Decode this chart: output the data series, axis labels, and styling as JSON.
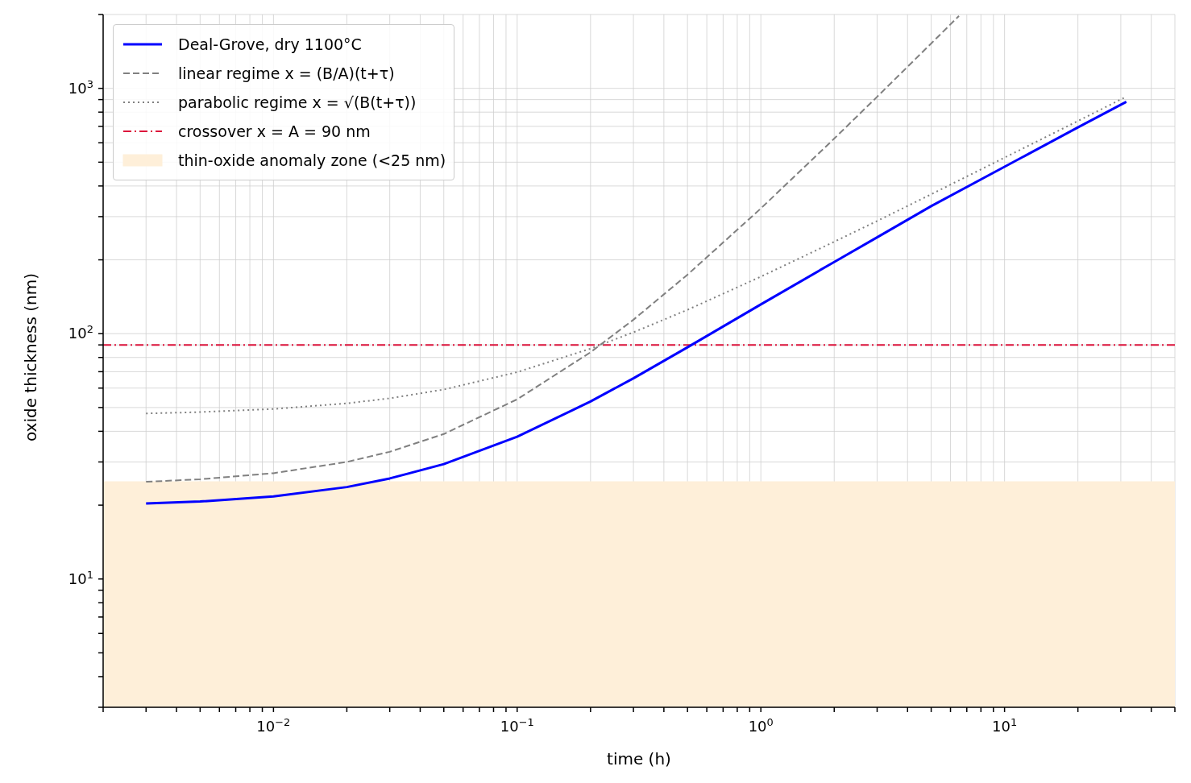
{
  "chart_data": {
    "type": "line",
    "xlabel": "time (h)",
    "ylabel": "oxide thickness (nm)",
    "log": "xy",
    "grid": true,
    "legend": "top left",
    "marker": "none",
    "xlim": [
      0.002,
      50
    ],
    "ylim": [
      3,
      2000
    ],
    "xticks": [
      {
        "value": 0.002,
        "label": null
      },
      {
        "value": 0.003,
        "label": null
      },
      {
        "value": 0.004,
        "label": null
      },
      {
        "value": 0.005,
        "label": null
      },
      {
        "value": 0.006,
        "label": null
      },
      {
        "value": 0.007,
        "label": null
      },
      {
        "value": 0.008,
        "label": null
      },
      {
        "value": 0.009,
        "label": null
      },
      {
        "value": 0.01,
        "label": "10$^{−2}$"
      },
      {
        "value": 0.02,
        "label": null
      },
      {
        "value": 0.03,
        "label": null
      },
      {
        "value": 0.04,
        "label": null
      },
      {
        "value": 0.05,
        "label": null
      },
      {
        "value": 0.06,
        "label": null
      },
      {
        "value": 0.07,
        "label": null
      },
      {
        "value": 0.08,
        "label": null
      },
      {
        "value": 0.09,
        "label": null
      },
      {
        "value": 0.1,
        "label": "10$^{−1}$"
      },
      {
        "value": 0.2,
        "label": null
      },
      {
        "value": 0.3,
        "label": null
      },
      {
        "value": 0.4,
        "label": null
      },
      {
        "value": 0.5,
        "label": null
      },
      {
        "value": 0.6,
        "label": null
      },
      {
        "value": 0.7,
        "label": null
      },
      {
        "value": 0.8,
        "label": null
      },
      {
        "value": 0.9,
        "label": null
      },
      {
        "value": 1,
        "label": "10$^{0}$"
      },
      {
        "value": 2,
        "label": null
      },
      {
        "value": 3,
        "label": null
      },
      {
        "value": 4,
        "label": null
      },
      {
        "value": 5,
        "label": null
      },
      {
        "value": 6,
        "label": null
      },
      {
        "value": 7,
        "label": null
      },
      {
        "value": 8,
        "label": null
      },
      {
        "value": 9,
        "label": null
      },
      {
        "value": 10,
        "label": "10$^{1}$"
      },
      {
        "value": 20,
        "label": null
      },
      {
        "value": 30,
        "label": null
      },
      {
        "value": 40,
        "label": null
      },
      {
        "value": 50,
        "label": null
      }
    ],
    "yticks": [
      {
        "value": 3,
        "label": null
      },
      {
        "value": 4,
        "label": null
      },
      {
        "value": 5,
        "label": null
      },
      {
        "value": 6,
        "label": null
      },
      {
        "value": 7,
        "label": null
      },
      {
        "value": 8,
        "label": null
      },
      {
        "value": 9,
        "label": null
      },
      {
        "value": 10,
        "label": "10$^{1}$"
      },
      {
        "value": 20,
        "label": null
      },
      {
        "value": 30,
        "label": null
      },
      {
        "value": 40,
        "label": null
      },
      {
        "value": 50,
        "label": null
      },
      {
        "value": 60,
        "label": null
      },
      {
        "value": 70,
        "label": null
      },
      {
        "value": 80,
        "label": null
      },
      {
        "value": 90,
        "label": null
      },
      {
        "value": 100,
        "label": "10$^{2}$"
      },
      {
        "value": 200,
        "label": null
      },
      {
        "value": 300,
        "label": null
      },
      {
        "value": 400,
        "label": null
      },
      {
        "value": 500,
        "label": null
      },
      {
        "value": 600,
        "label": null
      },
      {
        "value": 700,
        "label": null
      },
      {
        "value": 800,
        "label": null
      },
      {
        "value": 900,
        "label": null
      },
      {
        "value": 1000,
        "label": "10$^{3}$"
      },
      {
        "value": 2000,
        "label": null
      }
    ],
    "series": [
      {
        "name": "Deal-Grove, dry 1100°C",
        "color": "#0000ff",
        "line_style": "solid",
        "x": [
          0.003,
          0.005,
          0.01,
          0.02,
          0.03,
          0.05,
          0.1,
          0.2,
          0.3,
          0.5,
          1,
          2,
          3,
          5,
          10,
          20,
          31.6
        ],
        "values": [
          20.3,
          20.7,
          21.7,
          23.7,
          25.7,
          29.4,
          38,
          52.9,
          65.8,
          88,
          131.6,
          196,
          247,
          331,
          479,
          693,
          881
        ]
      },
      {
        "name": "linear regime  x = (B/A)(t+τ)",
        "color": "#808080",
        "line_style": "dashed",
        "x": [
          0.003,
          0.005,
          0.01,
          0.02,
          0.03,
          0.05,
          0.1,
          0.2,
          0.3,
          0.5,
          1,
          2,
          3,
          5,
          6.5
        ],
        "values": [
          24.9,
          25.5,
          27,
          30,
          33,
          39,
          54,
          84,
          114,
          174,
          324,
          624,
          924,
          1524,
          1974
        ]
      },
      {
        "name": "parabolic regime  x = √(B(t+τ))",
        "color": "#808080",
        "line_style": "dotted",
        "x": [
          0.003,
          0.005,
          0.01,
          0.02,
          0.03,
          0.05,
          0.1,
          0.2,
          0.3,
          0.5,
          1,
          2,
          3,
          5,
          10,
          20,
          31.6
        ],
        "values": [
          47.3,
          47.9,
          49.3,
          52,
          54.5,
          59.2,
          69.7,
          86.9,
          101.3,
          125.1,
          170.8,
          237,
          288,
          370,
          522,
          736,
          925
        ]
      }
    ],
    "ref_lines": [
      {
        "axis": "y",
        "value": 90,
        "label": "crossover x = A = 90 nm",
        "color": "#dc143c",
        "line_style": "dashdot"
      }
    ],
    "bands": [
      {
        "axis": "y",
        "from": 3,
        "to": 25,
        "label": "thin-oxide anomaly zone (<25 nm)",
        "color": "#feefd9"
      }
    ]
  }
}
